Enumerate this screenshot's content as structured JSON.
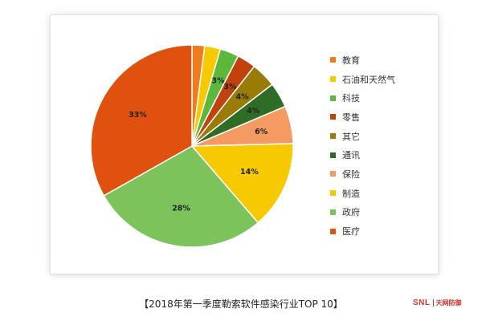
{
  "chart_data": {
    "type": "pie",
    "title": "",
    "categories": [
      "教育",
      "石油和天然气",
      "科技",
      "零售",
      "其它",
      "通讯",
      "保险",
      "制造",
      "政府",
      "医疗"
    ],
    "values": [
      2,
      2.5,
      3,
      3,
      4,
      4,
      6,
      14,
      28,
      33
    ],
    "data_labels": [
      "",
      "",
      "3%",
      "3%",
      "4%",
      "4%",
      "6%",
      "14%",
      "28%",
      "33%"
    ],
    "colors": [
      "#f07c1d",
      "#f7c900",
      "#5bb83a",
      "#c1420c",
      "#9a7b06",
      "#2f6d27",
      "#f39b63",
      "#f7c900",
      "#7cc35b",
      "#e0500e"
    ],
    "start": "12 o'clock",
    "direction": "clockwise",
    "legend_placement": "right"
  },
  "caption": "【2018年第一季度勒索软件感染行业TOP 10】",
  "brand": {
    "mark": "SNL",
    "name": "天网防御"
  }
}
